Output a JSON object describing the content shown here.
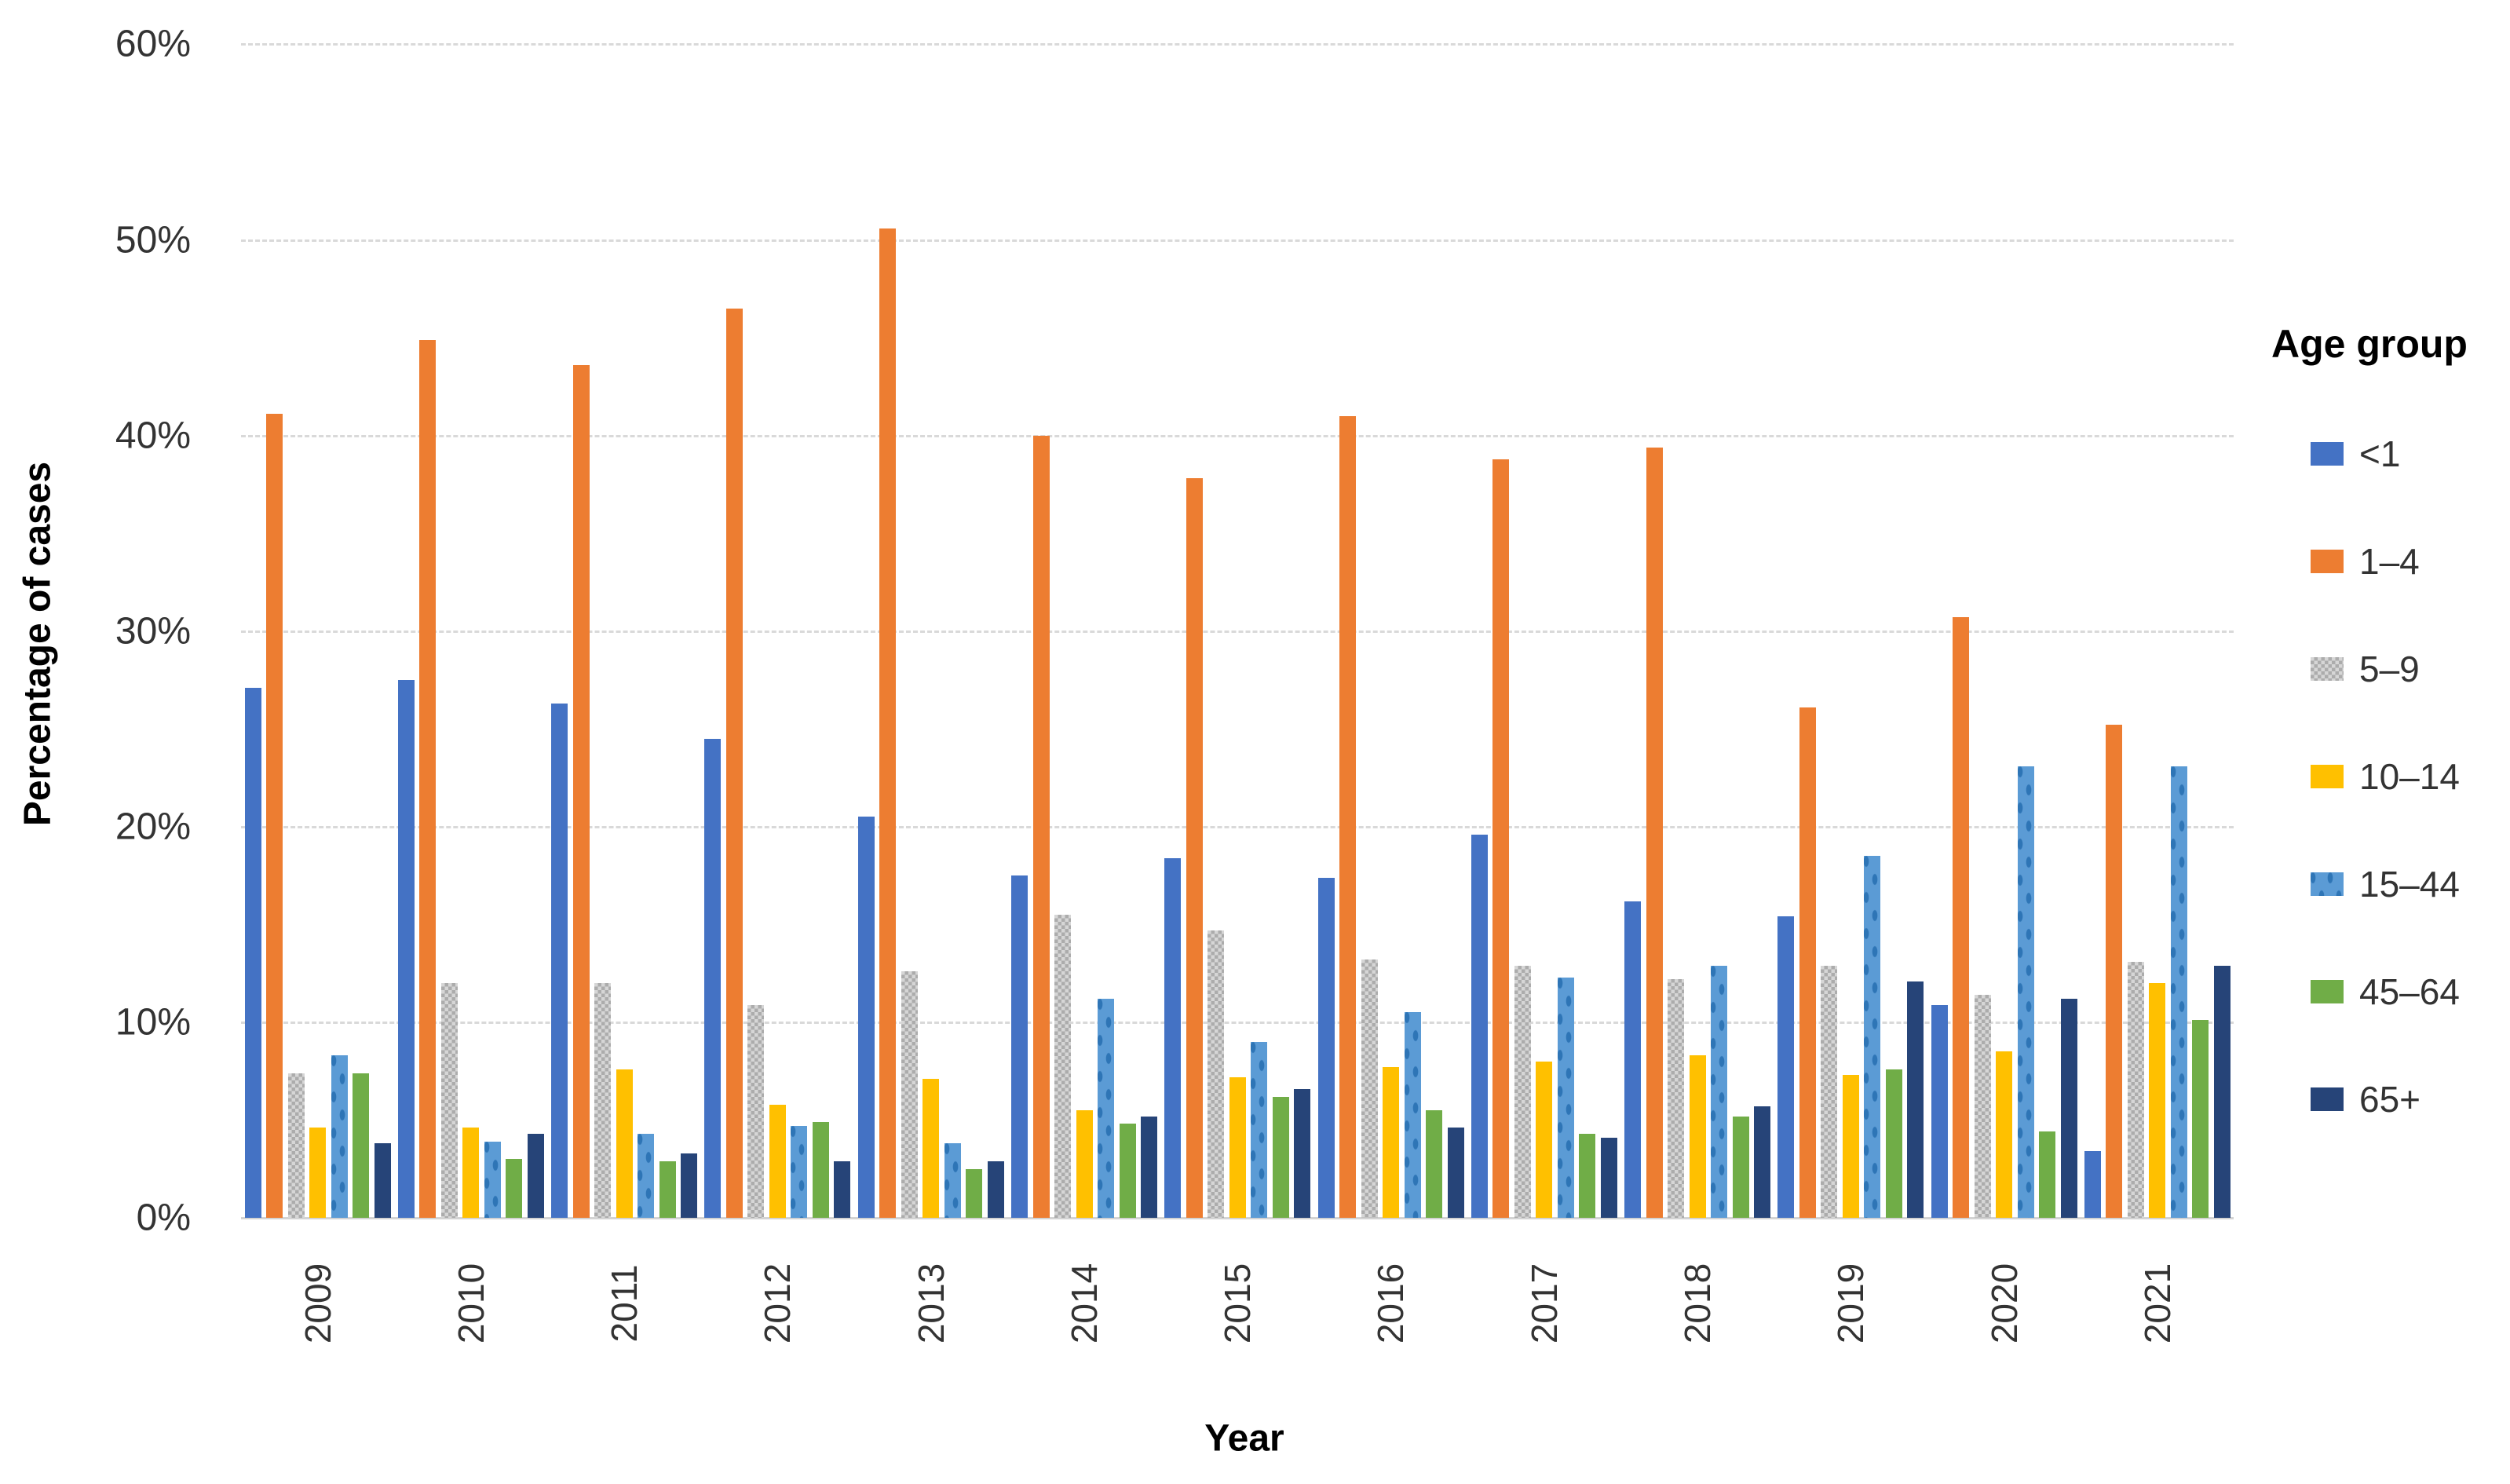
{
  "chart_data": {
    "type": "bar",
    "title": "",
    "xlabel": "Year",
    "ylabel": "Percentage of cases",
    "legend_title": "Age group",
    "legend_position": "right",
    "grid": true,
    "ylim": [
      0,
      60
    ],
    "ytick_step": 10,
    "ytick_labels": [
      "0%",
      "10%",
      "20%",
      "30%",
      "40%",
      "50%",
      "60%"
    ],
    "categories": [
      "2009",
      "2010",
      "2011",
      "2012",
      "2013",
      "2014",
      "2015",
      "2016",
      "2017",
      "2018",
      "2019",
      "2020",
      "2021"
    ],
    "series": [
      {
        "name": "<1",
        "slug": "under-1",
        "color": "#4472C4",
        "pattern": "solid",
        "values": [
          27.1,
          27.5,
          26.3,
          24.5,
          20.5,
          17.5,
          18.4,
          17.4,
          19.6,
          16.2,
          15.4,
          10.9,
          3.4
        ]
      },
      {
        "name": "1–4",
        "slug": "1-4",
        "color": "#ED7D31",
        "pattern": "solid",
        "values": [
          41.1,
          44.9,
          43.6,
          46.5,
          50.6,
          40.0,
          37.8,
          41.0,
          38.8,
          39.4,
          26.1,
          30.7,
          25.2
        ]
      },
      {
        "name": "5–9",
        "slug": "5-9",
        "color": "#D6D6D6",
        "pattern": "checker",
        "pattern_color": "#ACACAC",
        "values": [
          7.4,
          12.0,
          12.0,
          10.9,
          12.6,
          15.5,
          14.7,
          13.2,
          12.9,
          12.2,
          12.9,
          11.4,
          13.1
        ]
      },
      {
        "name": "10–14",
        "slug": "10-14",
        "color": "#FFC000",
        "pattern": "solid",
        "values": [
          4.6,
          4.6,
          7.6,
          5.8,
          7.1,
          5.5,
          7.2,
          7.7,
          8.0,
          8.3,
          7.3,
          8.5,
          12.0
        ]
      },
      {
        "name": "15–44",
        "slug": "15-44",
        "color": "#5B9BD5",
        "pattern": "dots",
        "pattern_color": "#2E75B6",
        "values": [
          8.3,
          3.9,
          4.3,
          4.7,
          3.8,
          11.2,
          9.0,
          10.5,
          12.3,
          12.9,
          18.5,
          23.1,
          23.1
        ]
      },
      {
        "name": "45–64",
        "slug": "45-64",
        "color": "#70AD47",
        "pattern": "solid",
        "values": [
          7.4,
          3.0,
          2.9,
          4.9,
          2.5,
          4.8,
          6.2,
          5.5,
          4.3,
          5.2,
          7.6,
          4.4,
          10.1
        ]
      },
      {
        "name": "65+",
        "slug": "65-plus",
        "color": "#264478",
        "pattern": "solid",
        "values": [
          3.8,
          4.3,
          3.3,
          2.9,
          2.9,
          5.2,
          6.6,
          4.6,
          4.1,
          5.7,
          12.1,
          11.2,
          12.9
        ]
      }
    ]
  }
}
